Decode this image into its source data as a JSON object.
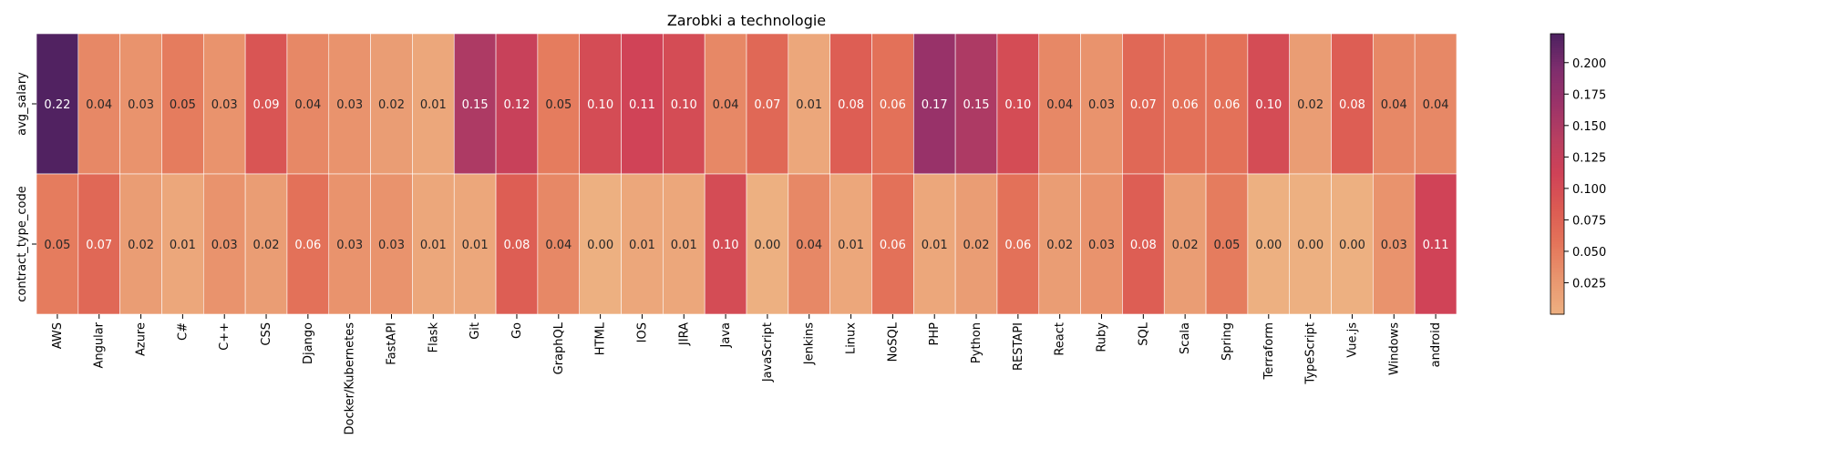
{
  "chart_data": {
    "type": "heatmap",
    "title": "Zarobki a technologie",
    "xlabel": "",
    "ylabel": "",
    "categories": [
      "AWS",
      "Angular",
      "Azure",
      "C#",
      "C++",
      "CSS",
      "Django",
      "Docker/Kubernetes",
      "FastAPI",
      "Flask",
      "Git",
      "Go",
      "GraphQL",
      "HTML",
      "IOS",
      "JIRA",
      "Java",
      "JavaScript",
      "Jenkins",
      "Linux",
      "NoSQL",
      "PHP",
      "Python",
      "RESTAPI",
      "React",
      "Ruby",
      "SQL",
      "Scala",
      "Spring",
      "Terraform",
      "TypeScript",
      "Vue.js",
      "Windows",
      "android"
    ],
    "rows": [
      "avg_salary",
      "contract_type_code"
    ],
    "values": [
      [
        0.22,
        0.04,
        0.03,
        0.05,
        0.03,
        0.09,
        0.04,
        0.03,
        0.02,
        0.01,
        0.15,
        0.12,
        0.05,
        0.1,
        0.11,
        0.1,
        0.04,
        0.07,
        0.01,
        0.08,
        0.06,
        0.17,
        0.15,
        0.1,
        0.04,
        0.03,
        0.07,
        0.06,
        0.06,
        0.1,
        0.02,
        0.08,
        0.04,
        0.04
      ],
      [
        0.05,
        0.07,
        0.02,
        0.01,
        0.03,
        0.02,
        0.06,
        0.03,
        0.03,
        0.01,
        0.01,
        0.08,
        0.04,
        0.0,
        0.01,
        0.01,
        0.1,
        0.0,
        0.04,
        0.01,
        0.06,
        0.01,
        0.02,
        0.06,
        0.02,
        0.03,
        0.08,
        0.02,
        0.05,
        0.0,
        0.0,
        0.0,
        0.03,
        0.11
      ]
    ],
    "colorbar": {
      "min": 0.0,
      "max": 0.223,
      "ticks": [
        0.025,
        0.05,
        0.075,
        0.1,
        0.125,
        0.15,
        0.175,
        0.2
      ],
      "tick_labels": [
        "0.025",
        "0.050",
        "0.075",
        "0.100",
        "0.125",
        "0.150",
        "0.175",
        "0.200"
      ],
      "colormap": "flare",
      "stops": [
        "#edb081",
        "#e9966f",
        "#e4755a",
        "#dc5b53",
        "#cf4257",
        "#b83f61",
        "#9b3369",
        "#7e2d6d",
        "#4c2160"
      ]
    },
    "grid": false,
    "annotated": true
  }
}
